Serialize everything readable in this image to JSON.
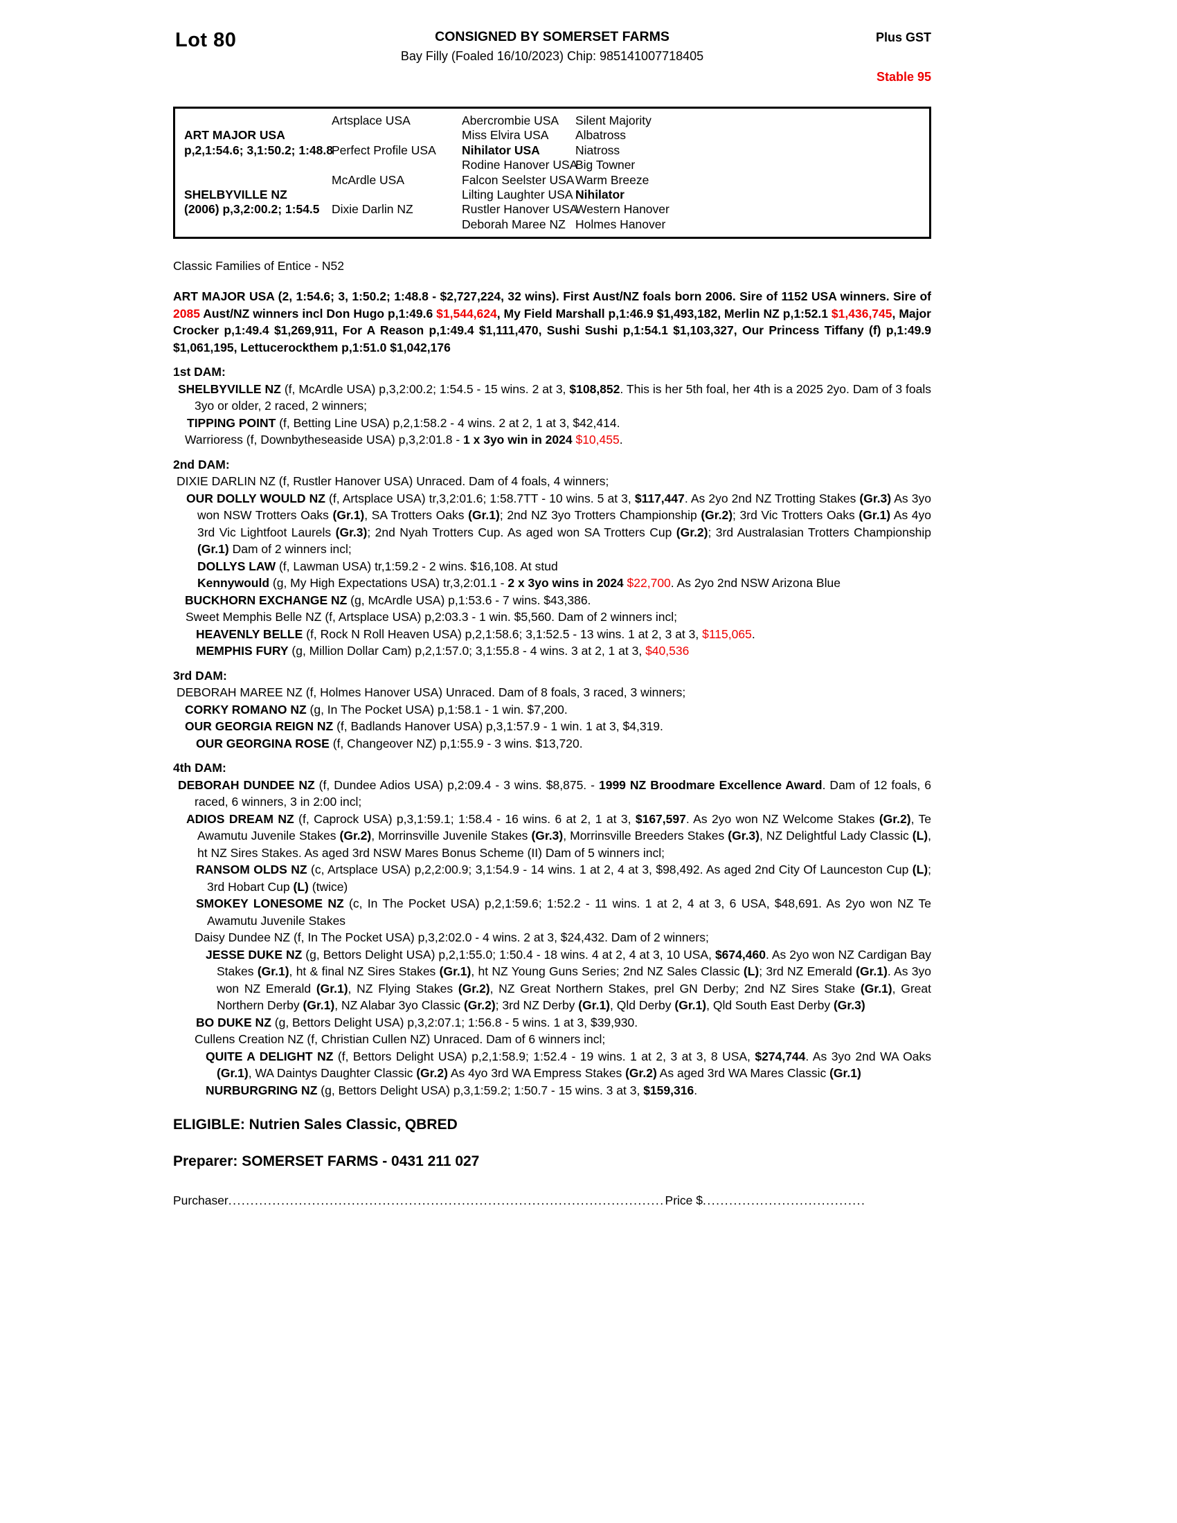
{
  "colors": {
    "accent_red": "#ee0000"
  },
  "header": {
    "lot": "Lot 80",
    "consignor": "CONSIGNED BY SOMERSET FARMS",
    "description": "Bay Filly (Foaled 16/10/2023) Chip: 985141007718405",
    "gst": "Plus GST",
    "stable": "Stable 95"
  },
  "pedigree_table": {
    "generation1": [
      {
        "name": "ART MAJOR USA",
        "record": "p,2,1:54.6; 3,1:50.2; 1:48.8",
        "row": 2
      },
      {
        "name": "SHELBYVILLE NZ",
        "record": "(2006) p,3,2:00.2; 1:54.5",
        "row": 6
      }
    ],
    "generation2": [
      {
        "name": "Artsplace USA",
        "row": 1
      },
      {
        "name": "Perfect Profile USA",
        "row": 3
      },
      {
        "name": "McArdle USA",
        "row": 5
      },
      {
        "name": "Dixie Darlin NZ",
        "row": 7
      }
    ],
    "generation3": [
      {
        "name": "Abercrombie USA"
      },
      {
        "name": "Miss Elvira USA"
      },
      {
        "name": "Nihilator USA",
        "bold": true
      },
      {
        "name": "Rodine Hanover USA"
      },
      {
        "name": "Falcon Seelster USA"
      },
      {
        "name": "Lilting Laughter USA"
      },
      {
        "name": "Rustler Hanover USA"
      },
      {
        "name": "Deborah Maree NZ"
      }
    ],
    "generation4": [
      {
        "name": "Silent Majority"
      },
      {
        "name": "Albatross"
      },
      {
        "name": "Niatross"
      },
      {
        "name": "Big Towner"
      },
      {
        "name": "Warm Breeze"
      },
      {
        "name": "Nihilator",
        "bold": true
      },
      {
        "name": "Western Hanover"
      },
      {
        "name": "Holmes Hanover"
      }
    ]
  },
  "family_line": "Classic Families of Entice - N52",
  "sire_summary": {
    "segments": [
      {
        "t": "ART MAJOR USA (2, 1:54.6; 3, 1:50.2; 1:48.8 - $2,727,224, 32 wins). First Aust/NZ foals born 2006. Sire of 1152 USA winners. Sire of ",
        "b": true
      },
      {
        "t": "2085",
        "b": true,
        "r": true
      },
      {
        "t": " Aust/NZ winners incl Don Hugo p,1:49.6 ",
        "b": true
      },
      {
        "t": "$1,544,624",
        "b": true,
        "r": true
      },
      {
        "t": ", My Field Marshall p,1:46.9 $1,493,182, Merlin NZ p,1:52.1 ",
        "b": true
      },
      {
        "t": "$1,436,745",
        "b": true,
        "r": true
      },
      {
        "t": ", Major Crocker p,1:49.4 $1,269,911, For A Reason p,1:49.4 $1,111,470, Sushi Sushi p,1:54.1 $1,103,327, Our Princess Tiffany (f) p,1:49.9 $1,061,195, Lettucerockthem p,1:51.0 $1,042,176",
        "b": true
      }
    ]
  },
  "dam_sections": [
    {
      "heading": "1st DAM:",
      "entries": [
        {
          "first_indent": 7,
          "cont_indent": 31,
          "segments": [
            {
              "t": "SHELBYVILLE NZ",
              "b": true
            },
            {
              "t": " (f, McArdle USA) p,3,2:00.2; 1:54.5 - 15 wins. 2 at 3, "
            },
            {
              "t": "$108,852",
              "b": true
            },
            {
              "t": ". This is her 5th foal, her 4th is a 2025 2yo. Dam of 3 foals 3yo or older, 2 raced, 2 winners;"
            }
          ]
        },
        {
          "first_indent": 20,
          "cont_indent": 36,
          "segments": [
            {
              "t": "TIPPING POINT",
              "b": true
            },
            {
              "t": " (f, Betting Line USA) p,2,1:58.2 - 4 wins. 2 at 2, 1 at 3, $42,414."
            }
          ]
        },
        {
          "first_indent": 17,
          "cont_indent": 33,
          "segments": [
            {
              "t": "Warrioress (f, Downbytheseaside USA) p,3,2:01.8 - "
            },
            {
              "t": "1 x 3yo win in 2024",
              "b": true
            },
            {
              "t": " "
            },
            {
              "t": "$10,455",
              "r": true
            },
            {
              "t": "."
            }
          ]
        }
      ]
    },
    {
      "heading": "2nd DAM:",
      "entries": [
        {
          "first_indent": 5,
          "cont_indent": 29,
          "segments": [
            {
              "t": "DIXIE DARLIN NZ (f, Rustler Hanover USA) Unraced. Dam of 4 foals, 4 winners;"
            }
          ]
        },
        {
          "first_indent": 19,
          "cont_indent": 35,
          "segments": [
            {
              "t": "OUR DOLLY WOULD NZ",
              "b": true
            },
            {
              "t": " (f, Artsplace USA) tr,3,2:01.6; 1:58.7TT - 10 wins. 5 at 3, "
            },
            {
              "t": "$117,447",
              "b": true
            },
            {
              "t": ". As 2yo 2nd NZ Trotting Stakes "
            },
            {
              "t": "(Gr.3)",
              "b": true
            },
            {
              "t": " As 3yo won NSW Trotters Oaks "
            },
            {
              "t": "(Gr.1)",
              "b": true
            },
            {
              "t": ", SA Trotters Oaks "
            },
            {
              "t": "(Gr.1)",
              "b": true
            },
            {
              "t": "; 2nd NZ 3yo Trotters Championship "
            },
            {
              "t": "(Gr.2)",
              "b": true
            },
            {
              "t": "; 3rd Vic Trotters Oaks "
            },
            {
              "t": "(Gr.1)",
              "b": true
            },
            {
              "t": " As 4yo 3rd Vic Lightfoot Laurels "
            },
            {
              "t": "(Gr.3)",
              "b": true
            },
            {
              "t": "; 2nd Nyah Trotters Cup. As aged won SA Trotters Cup "
            },
            {
              "t": "(Gr.2)",
              "b": true
            },
            {
              "t": "; 3rd Australasian Trotters Championship "
            },
            {
              "t": "(Gr.1)",
              "b": true
            },
            {
              "t": " Dam of 2 winners incl;"
            }
          ]
        },
        {
          "first_indent": 35,
          "cont_indent": 51,
          "segments": [
            {
              "t": "DOLLYS LAW",
              "b": true
            },
            {
              "t": " (f, Lawman USA) tr,1:59.2 - 2 wins. $16,108. At stud"
            }
          ]
        },
        {
          "first_indent": 35,
          "cont_indent": 51,
          "segments": [
            {
              "t": "Kennywould",
              "b": true
            },
            {
              "t": " (g, My High Expectations USA) tr,3,2:01.1 - "
            },
            {
              "t": "2 x 3yo wins in 2024",
              "b": true
            },
            {
              "t": " "
            },
            {
              "t": "$22,700",
              "r": true
            },
            {
              "t": ". As 2yo 2nd NSW Arizona Blue"
            }
          ]
        },
        {
          "first_indent": 17,
          "cont_indent": 33,
          "segments": [
            {
              "t": "BUCKHORN EXCHANGE NZ",
              "b": true
            },
            {
              "t": " (g, McArdle USA) p,1:53.6 - 7 wins. $43,386."
            }
          ]
        },
        {
          "first_indent": 18,
          "cont_indent": 34,
          "segments": [
            {
              "t": "Sweet Memphis Belle NZ (f, Artsplace USA) p,2:03.3 - 1 win. $5,560. Dam of 2 winners incl;"
            }
          ]
        },
        {
          "first_indent": 33,
          "cont_indent": 49,
          "segments": [
            {
              "t": "HEAVENLY BELLE",
              "b": true
            },
            {
              "t": " (f, Rock N Roll Heaven USA) p,2,1:58.6; 3,1:52.5 - 13 wins. 1 at 2, 3 at 3, "
            },
            {
              "t": "$115,065",
              "r": true
            },
            {
              "t": "."
            }
          ]
        },
        {
          "first_indent": 33,
          "cont_indent": 49,
          "segments": [
            {
              "t": "MEMPHIS FURY",
              "b": true
            },
            {
              "t": " (g, Million Dollar Cam) p,2,1:57.0; 3,1:55.8 - 4 wins. 3 at 2, 1 at 3, "
            },
            {
              "t": "$40,536",
              "r": true
            }
          ]
        }
      ]
    },
    {
      "heading": "3rd DAM:",
      "entries": [
        {
          "first_indent": 5,
          "cont_indent": 29,
          "segments": [
            {
              "t": "DEBORAH MAREE NZ (f, Holmes Hanover USA) Unraced. Dam of 8 foals, 3 raced, 3 winners;"
            }
          ]
        },
        {
          "first_indent": 17,
          "cont_indent": 33,
          "segments": [
            {
              "t": "CORKY ROMANO NZ",
              "b": true
            },
            {
              "t": " (g, In The Pocket USA) p,1:58.1 - 1 win. $7,200."
            }
          ]
        },
        {
          "first_indent": 17,
          "cont_indent": 33,
          "segments": [
            {
              "t": "OUR GEORGIA REIGN NZ",
              "b": true
            },
            {
              "t": " (f, Badlands Hanover USA) p,3,1:57.9 - 1 win. 1 at 3, $4,319."
            }
          ]
        },
        {
          "first_indent": 33,
          "cont_indent": 49,
          "segments": [
            {
              "t": "OUR GEORGINA ROSE",
              "b": true
            },
            {
              "t": " (f, Changeover NZ) p,1:55.9 - 3 wins. $13,720."
            }
          ]
        }
      ]
    },
    {
      "heading": "4th DAM:",
      "entries": [
        {
          "first_indent": 7,
          "cont_indent": 31,
          "segments": [
            {
              "t": "DEBORAH DUNDEE NZ",
              "b": true
            },
            {
              "t": " (f, Dundee Adios USA) p,2:09.4 - 3 wins. $8,875. - "
            },
            {
              "t": "1999 NZ Broodmare Excellence Award",
              "b": true
            },
            {
              "t": ". Dam of 12 foals, 6 raced, 6 winners, 3 in 2:00 incl;"
            }
          ]
        },
        {
          "first_indent": 19,
          "cont_indent": 35,
          "segments": [
            {
              "t": "ADIOS DREAM NZ",
              "b": true
            },
            {
              "t": " (f, Caprock USA) p,3,1:59.1; 1:58.4 - 16 wins. 6 at 2, 1 at 3, "
            },
            {
              "t": "$167,597",
              "b": true
            },
            {
              "t": ". As 2yo won NZ Welcome Stakes "
            },
            {
              "t": "(Gr.2)",
              "b": true
            },
            {
              "t": ", Te Awamutu Juvenile Stakes "
            },
            {
              "t": "(Gr.2)",
              "b": true
            },
            {
              "t": ", Morrinsville Juvenile Stakes "
            },
            {
              "t": "(Gr.3)",
              "b": true
            },
            {
              "t": ", Morrinsville Breeders Stakes "
            },
            {
              "t": "(Gr.3)",
              "b": true
            },
            {
              "t": ", NZ Delightful Lady Classic "
            },
            {
              "t": "(L)",
              "b": true
            },
            {
              "t": ", ht NZ Sires Stakes. As aged 3rd NSW Mares Bonus Scheme (II) Dam of 5 winners incl;"
            }
          ]
        },
        {
          "first_indent": 33,
          "cont_indent": 49,
          "segments": [
            {
              "t": "RANSOM OLDS NZ",
              "b": true
            },
            {
              "t": " (c, Artsplace USA) p,2,2:00.9; 3,1:54.9 - 14 wins. 1 at 2, 4 at 3, $98,492. As aged 2nd City Of Launceston Cup "
            },
            {
              "t": "(L)",
              "b": true
            },
            {
              "t": "; 3rd Hobart Cup "
            },
            {
              "t": "(L)",
              "b": true
            },
            {
              "t": " (twice)"
            }
          ]
        },
        {
          "first_indent": 33,
          "cont_indent": 49,
          "segments": [
            {
              "t": "SMOKEY LONESOME NZ",
              "b": true
            },
            {
              "t": " (c, In The Pocket USA) p,2,1:59.6; 1:52.2 - 11 wins. 1 at 2, 4 at 3, 6 USA, $48,691. As 2yo won NZ Te Awamutu Juvenile Stakes"
            }
          ]
        },
        {
          "first_indent": 31,
          "cont_indent": 47,
          "segments": [
            {
              "t": "Daisy Dundee NZ (f, In The Pocket USA) p,3,2:02.0 - 4 wins. 2 at 3, $24,432. Dam of 2 winners;"
            }
          ]
        },
        {
          "first_indent": 47,
          "cont_indent": 63,
          "segments": [
            {
              "t": "JESSE DUKE NZ",
              "b": true
            },
            {
              "t": " (g, Bettors Delight USA) p,2,1:55.0; 1:50.4 - 18 wins. 4 at 2, 4 at 3, 10 USA, "
            },
            {
              "t": "$674,460",
              "b": true
            },
            {
              "t": ". As 2yo won NZ Cardigan Bay Stakes "
            },
            {
              "t": "(Gr.1)",
              "b": true
            },
            {
              "t": ", ht & final NZ Sires Stakes "
            },
            {
              "t": "(Gr.1)",
              "b": true
            },
            {
              "t": ", ht NZ Young Guns Series; 2nd NZ Sales Classic "
            },
            {
              "t": "(L)",
              "b": true
            },
            {
              "t": "; 3rd NZ Emerald "
            },
            {
              "t": "(Gr.1)",
              "b": true
            },
            {
              "t": ". As 3yo won NZ Emerald "
            },
            {
              "t": "(Gr.1)",
              "b": true
            },
            {
              "t": ", NZ Flying Stakes "
            },
            {
              "t": "(Gr.2)",
              "b": true
            },
            {
              "t": ", NZ Great Northern Stakes, prel GN Derby; 2nd NZ Sires Stake "
            },
            {
              "t": "(Gr.1)",
              "b": true
            },
            {
              "t": ", Great Northern Derby "
            },
            {
              "t": "(Gr.1)",
              "b": true
            },
            {
              "t": ", NZ Alabar 3yo Classic "
            },
            {
              "t": "(Gr.2)",
              "b": true
            },
            {
              "t": "; 3rd NZ Derby "
            },
            {
              "t": "(Gr.1)",
              "b": true
            },
            {
              "t": ", Qld Derby "
            },
            {
              "t": "(Gr.1)",
              "b": true
            },
            {
              "t": ", Qld South East Derby "
            },
            {
              "t": "(Gr.3)",
              "b": true
            }
          ]
        },
        {
          "first_indent": 33,
          "cont_indent": 49,
          "segments": [
            {
              "t": "BO DUKE NZ",
              "b": true
            },
            {
              "t": " (g, Bettors Delight USA) p,3,2:07.1; 1:56.8 - 5 wins. 1 at 3, $39,930."
            }
          ]
        },
        {
          "first_indent": 31,
          "cont_indent": 47,
          "segments": [
            {
              "t": "Cullens Creation NZ (f, Christian Cullen NZ) Unraced. Dam of 6 winners incl;"
            }
          ]
        },
        {
          "first_indent": 47,
          "cont_indent": 63,
          "segments": [
            {
              "t": "QUITE A DELIGHT NZ",
              "b": true
            },
            {
              "t": " (f, Bettors Delight USA) p,2,1:58.9; 1:52.4 - 19 wins. 1 at 2, 3 at 3, 8 USA, "
            },
            {
              "t": "$274,744",
              "b": true
            },
            {
              "t": ". As 3yo 2nd WA Oaks "
            },
            {
              "t": "(Gr.1)",
              "b": true
            },
            {
              "t": ", WA Daintys Daughter Classic "
            },
            {
              "t": "(Gr.2)",
              "b": true
            },
            {
              "t": " As 4yo 3rd WA Empress Stakes "
            },
            {
              "t": "(Gr.2)",
              "b": true
            },
            {
              "t": " As aged 3rd WA Mares Classic "
            },
            {
              "t": "(Gr.1)",
              "b": true
            }
          ]
        },
        {
          "first_indent": 47,
          "cont_indent": 63,
          "segments": [
            {
              "t": "NURBURGRING NZ",
              "b": true
            },
            {
              "t": " (g, Bettors Delight USA) p,3,1:59.2; 1:50.7 - 15 wins. 3 at 3, "
            },
            {
              "t": "$159,316",
              "b": true
            },
            {
              "t": "."
            }
          ]
        }
      ]
    }
  ],
  "footer": {
    "eligible": "ELIGIBLE: Nutrien Sales Classic, QBRED",
    "preparer": "Preparer: SOMERSET FARMS - 0431 211 027",
    "purchaser_label": "Purchaser",
    "price_label": "Price $",
    "purchaser_leader": "........................................................................................................................................................",
    "price_leader": "................................................................"
  }
}
